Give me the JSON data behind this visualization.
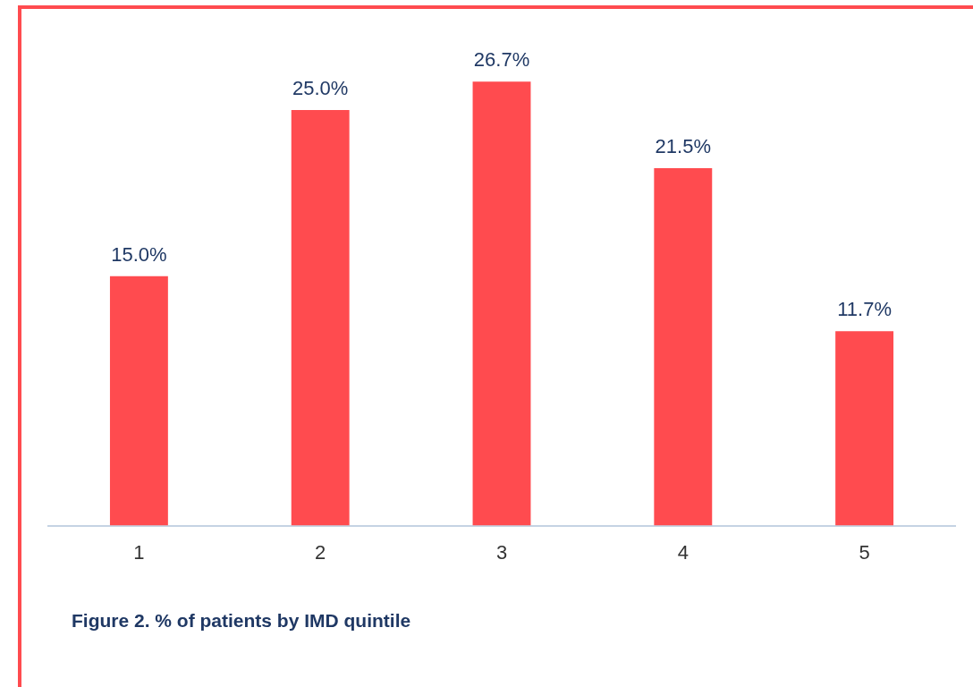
{
  "chart_data": {
    "type": "bar",
    "categories": [
      "1",
      "2",
      "3",
      "4",
      "5"
    ],
    "values": [
      15.0,
      25.0,
      26.7,
      21.5,
      11.7
    ],
    "value_labels": [
      "15.0%",
      "25.0%",
      "26.7%",
      "21.5%",
      "11.7%"
    ],
    "color": "#ff4b4f",
    "annotations": [
      "Figure 2. % of patients by IMD quintile"
    ]
  }
}
